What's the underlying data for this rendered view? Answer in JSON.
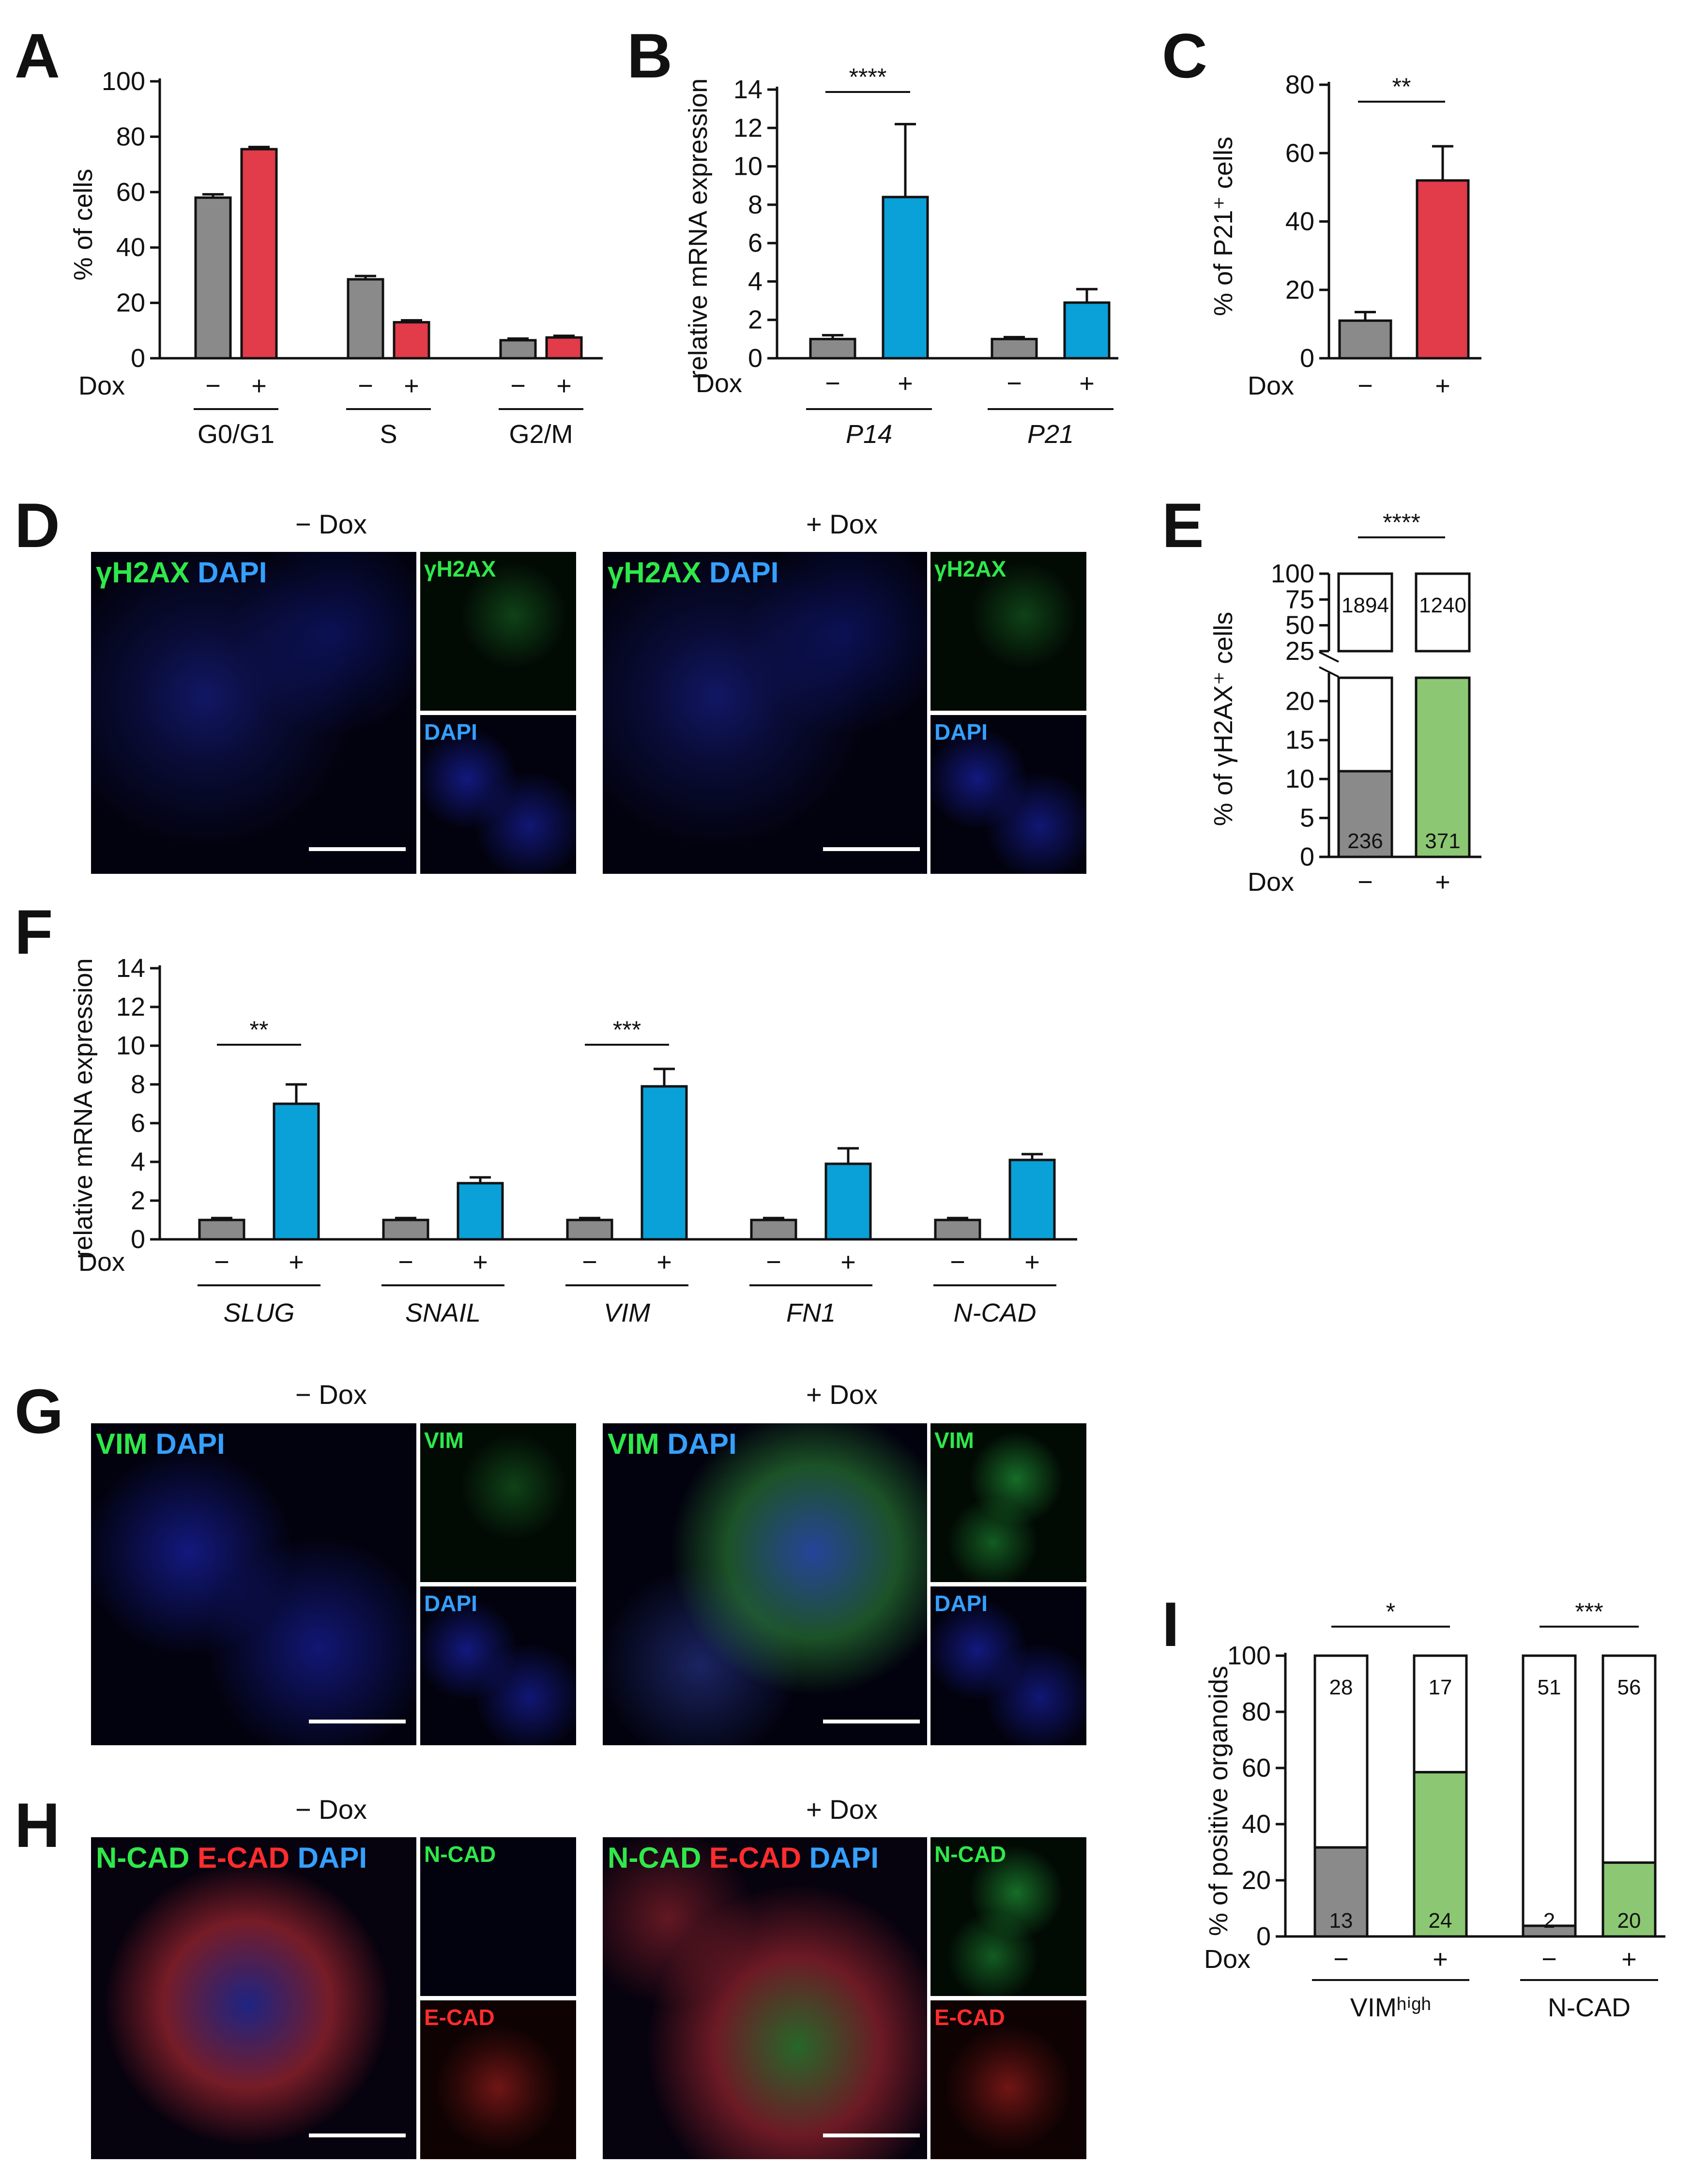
{
  "colors": {
    "grey": "#8a8a8a",
    "red": "#e23b49",
    "blue": "#0aa0d8",
    "green": "#8cc873",
    "white": "#ffffff"
  },
  "panel_letters": {
    "A": "A",
    "B": "B",
    "C": "C",
    "D": "D",
    "E": "E",
    "F": "F",
    "G": "G",
    "H": "H",
    "I": "I"
  },
  "dox_label": "Dox",
  "minus": "−",
  "plus": "+",
  "chart_data": [
    {
      "panel": "A",
      "type": "bar",
      "ylabel": "% of cells",
      "ylim": [
        0,
        100
      ],
      "yticks": [
        0,
        20,
        40,
        60,
        80,
        100
      ],
      "groups": [
        "G0/G1",
        "S",
        "G2/M"
      ],
      "series": [
        {
          "dox": "−",
          "color": "grey",
          "values": [
            58,
            28.5,
            6.5
          ],
          "errors": [
            1.2,
            1.2,
            0.6
          ]
        },
        {
          "dox": "+",
          "color": "red",
          "values": [
            75.5,
            13,
            7.5
          ],
          "errors": [
            0.8,
            0.7,
            0.6
          ]
        }
      ]
    },
    {
      "panel": "B",
      "type": "bar",
      "ylabel": "relative mRNA expression",
      "ylim": [
        0,
        14
      ],
      "yticks": [
        0,
        2,
        4,
        6,
        8,
        10,
        12,
        14
      ],
      "groups": [
        "P14",
        "P21"
      ],
      "group_italic": true,
      "series": [
        {
          "dox": "−",
          "color": "grey",
          "values": [
            1.0,
            1.0
          ],
          "errors": [
            0.2,
            0.1
          ]
        },
        {
          "dox": "+",
          "color": "blue",
          "values": [
            8.4,
            2.9
          ],
          "errors": [
            3.8,
            0.7
          ]
        }
      ],
      "significance": [
        {
          "group": 0,
          "label": "****"
        }
      ]
    },
    {
      "panel": "C",
      "type": "bar",
      "ylabel": "% of P21⁺ cells",
      "ylim": [
        0,
        80
      ],
      "yticks": [
        0,
        20,
        40,
        60,
        80
      ],
      "series": [
        {
          "dox": "−",
          "color": "grey",
          "values": [
            11
          ],
          "errors": [
            2.5
          ]
        },
        {
          "dox": "+",
          "color": "red",
          "values": [
            52
          ],
          "errors": [
            10
          ]
        }
      ],
      "significance": [
        {
          "group": 0,
          "label": "**"
        }
      ]
    },
    {
      "panel": "E",
      "type": "bar",
      "ylabel": "% of γH2AX⁺ cells",
      "lower_ticks": [
        0,
        5,
        10,
        15,
        20
      ],
      "upper_ticks": [
        25,
        50,
        75,
        100
      ],
      "series": [
        {
          "dox": "−",
          "positive": 11,
          "count_positive": "236",
          "count_negative": "1894"
        },
        {
          "dox": "+",
          "positive": 23,
          "count_positive": "371",
          "count_negative": "1240"
        }
      ],
      "significance": "****"
    },
    {
      "panel": "F",
      "type": "bar",
      "ylabel": "relative mRNA expression",
      "ylim": [
        0,
        14
      ],
      "yticks": [
        0,
        2,
        4,
        6,
        8,
        10,
        12,
        14
      ],
      "groups": [
        "SLUG",
        "SNAIL",
        "VIM",
        "FN1",
        "N-CAD"
      ],
      "group_italic": true,
      "series": [
        {
          "dox": "−",
          "color": "grey",
          "values": [
            1.0,
            1.0,
            1.0,
            1.0,
            1.0
          ],
          "errors": [
            0.1,
            0.1,
            0.1,
            0.1,
            0.1
          ]
        },
        {
          "dox": "+",
          "color": "blue",
          "values": [
            7.0,
            2.9,
            7.9,
            3.9,
            4.1
          ],
          "errors": [
            1.0,
            0.3,
            0.9,
            0.8,
            0.3
          ]
        }
      ],
      "significance": [
        {
          "group": 0,
          "label": "**"
        },
        {
          "group": 2,
          "label": "***"
        }
      ]
    },
    {
      "panel": "I",
      "type": "bar",
      "ylabel": "% of positive organoids",
      "ylim": [
        0,
        100
      ],
      "yticks": [
        0,
        20,
        40,
        60,
        80,
        100
      ],
      "groups": [
        "VIMʰⁱᵍʰ",
        "N-CAD"
      ],
      "series": [
        {
          "dox": "−",
          "positive": [
            31.7,
            3.8
          ],
          "count_positive": [
            "13",
            "2"
          ],
          "count_negative": [
            "28",
            "51"
          ]
        },
        {
          "dox": "+",
          "positive": [
            58.5,
            26.3
          ],
          "count_positive": [
            "24",
            "20"
          ],
          "count_negative": [
            "17",
            "56"
          ]
        }
      ],
      "significance": [
        {
          "group": 0,
          "label": "*"
        },
        {
          "group": 1,
          "label": "***"
        }
      ]
    }
  ],
  "images": {
    "D": {
      "minus_title": "− Dox",
      "plus_title": "+ Dox",
      "merge_label_a": "γH2AX",
      "merge_label_b": "DAPI",
      "small_top": "γH2AX",
      "small_bottom": "DAPI"
    },
    "G": {
      "minus_title": "− Dox",
      "plus_title": "+ Dox",
      "merge_label_a": "VIM",
      "merge_label_b": "DAPI",
      "small_top": "VIM",
      "small_bottom": "DAPI"
    },
    "H": {
      "minus_title": "− Dox",
      "plus_title": "+ Dox",
      "merge_label_a": "N-CAD",
      "merge_label_b": "E-CAD",
      "merge_label_c": "DAPI",
      "small_top": "N-CAD",
      "small_bottom": "E-CAD"
    }
  }
}
